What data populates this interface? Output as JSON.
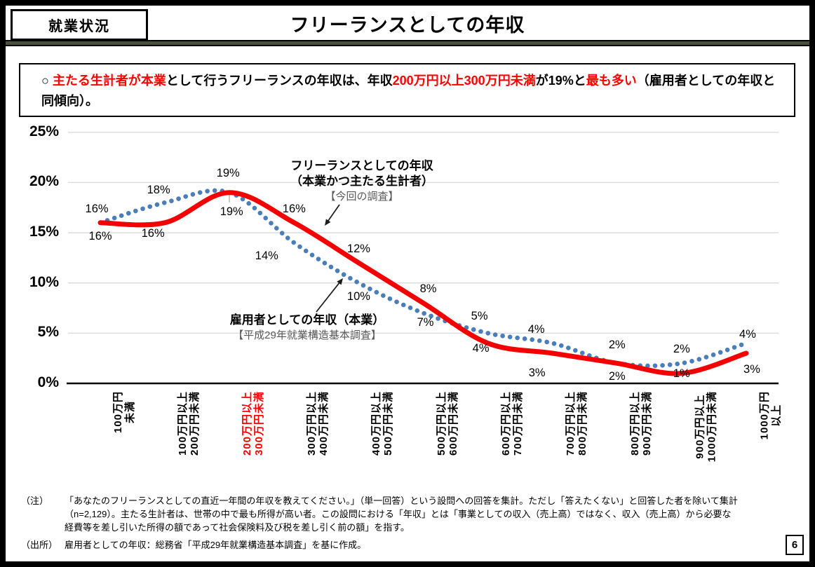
{
  "header": {
    "tag": "就業状況",
    "title": "フリーランスとしての年収"
  },
  "callout": {
    "segments": [
      {
        "text": "○ ",
        "red": false
      },
      {
        "text": "主たる生計者が本業",
        "red": true
      },
      {
        "text": "として行うフリーランスの年収は、年収",
        "red": false
      },
      {
        "text": "200万円以上300万円未満",
        "red": true
      },
      {
        "text": "が19%と",
        "red": false
      },
      {
        "text": "最も多い",
        "red": true
      },
      {
        "text": "（雇用者としての年収と同傾向）。",
        "red": false
      }
    ]
  },
  "chart_data": {
    "type": "line",
    "categories": [
      "100万円\n未満",
      "100万円以上\n200万円未満",
      "200万円以上\n300万円未満",
      "300万円以上\n400万円未満",
      "400万円以上\n500万円未満",
      "500万円以上\n600万円未満",
      "600万円以上\n700万円未満",
      "700万円以上\n800万円未満",
      "800万円以上\n900万円未満",
      "900万円以上\n1000万円未満",
      "1000万円\n以上"
    ],
    "highlight_category_index": 2,
    "highlight_color": "#ff0000",
    "series": [
      {
        "name": "フリーランスとしての年収（本業かつ主たる生計者）【今回の調査】",
        "color": "#f40000",
        "line_style": "solid",
        "values": [
          16,
          16,
          19,
          16,
          12,
          8,
          4,
          3,
          2,
          1,
          3
        ]
      },
      {
        "name": "雇用者としての年収（本業）【平成29年就業構造基本調査】",
        "color": "#4a7ebb",
        "line_style": "dotted",
        "values": [
          16,
          18,
          19,
          14,
          10,
          7,
          5,
          4,
          2,
          2,
          4
        ]
      }
    ],
    "ylim": [
      0,
      25
    ],
    "yticks": [
      "0%",
      "5%",
      "10%",
      "15%",
      "20%",
      "25%"
    ],
    "grid": true,
    "data_label_suffix": "%",
    "legend_position": "in-plot annotations",
    "annotations": [
      {
        "lines": [
          "フリーランスとしての年収",
          "（本業かつ主たる生計者）",
          "【今回の調査】"
        ],
        "gray_from": 2,
        "x": 516,
        "y": 56,
        "arrow": [
          484,
          122,
          463,
          152
        ]
      },
      {
        "lines": [
          "雇用者としての年収（本業）",
          "【平成29年就業構造基本調査】"
        ],
        "gray_from": 1,
        "x": 438,
        "y": 276,
        "arrow": [
          451,
          275,
          489,
          227
        ]
      }
    ]
  },
  "notes": {
    "label": "（注）",
    "lines": [
      "「あなたのフリーランスとしての直近一年間の年収を教えてください。」（単一回答）という設問への回答を集計。ただし「答えたくない」と回答した者を除いて集計",
      "（n=2,129）。主たる生計者は、世帯の中で最も所得が高い者。この設問における「年収」とは「事業としての収入（売上高）ではなく、収入（売上高）から必要な",
      "経費等を差し引いた所得の額であって社会保険料及び税を差し引く前の額」を指す。"
    ]
  },
  "source": {
    "label": "（出所）",
    "text": "雇用者としての年収：総務省「平成29年就業構造基本調査」を基に作成。"
  },
  "page_number": "6"
}
